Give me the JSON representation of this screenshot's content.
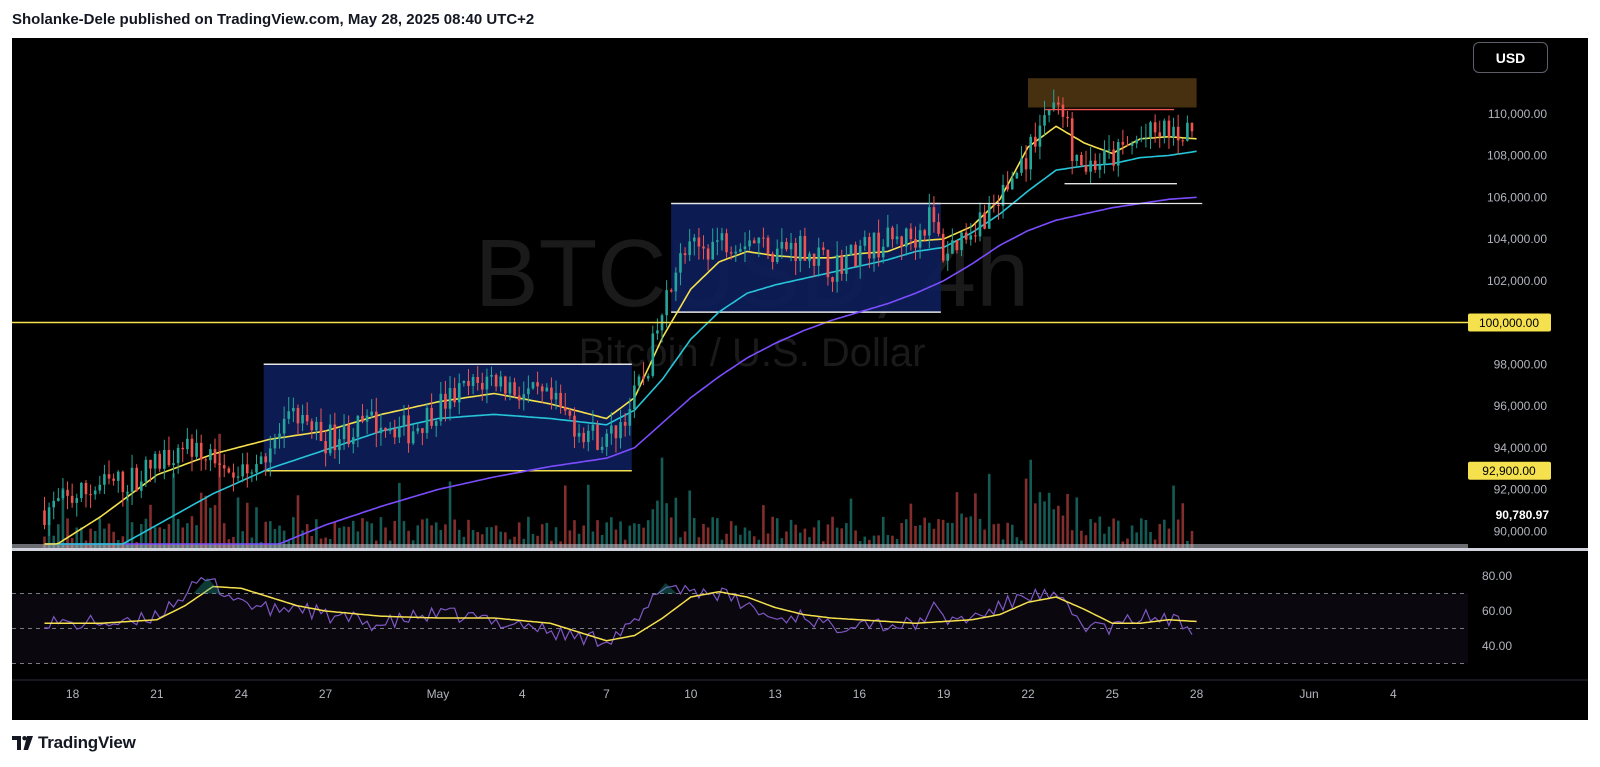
{
  "header": {
    "text": "Sholanke-Dele published on TradingView.com, May 28, 2025 08:40 UTC+2"
  },
  "watermark": {
    "symbol": "BTCUSD, 4h",
    "description": "Bitcoin / U.S. Dollar"
  },
  "currency_button": {
    "label": "USD"
  },
  "footer": {
    "logo_text": "TradingView",
    "logo_icon": "tradingview-logo-icon"
  },
  "colors": {
    "background": "#000000",
    "bull": "#26a69a",
    "bear": "#ef5350",
    "ema_fast": "#f5e14d",
    "ema_mid": "#26c6da",
    "ema_slow": "#7c4dff",
    "level": "#f5e14d",
    "range_box": "#0d1f5c",
    "supply_zone": "#4a3310",
    "rsi": "#7e57c2"
  },
  "chart_data": [
    {
      "type": "candlestick",
      "interval": "4h",
      "y_axis": {
        "range": [
          89300,
          112300
        ],
        "ticks": [
          "110,000.00",
          "108,000.00",
          "106,000.00",
          "104,000.00",
          "102,000.00",
          "98,000.00",
          "96,000.00",
          "94,000.00",
          "92,000.00",
          "90,000.00"
        ]
      },
      "x_axis": {
        "labels": [
          "18",
          "21",
          "24",
          "27",
          "May",
          "4",
          "7",
          "10",
          "13",
          "16",
          "19",
          "22",
          "25",
          "28",
          "Jun",
          "4"
        ],
        "start_day": 17,
        "end_day": 36
      },
      "price_labels": [
        {
          "text": "100,000.00",
          "value": 100000,
          "style": "yellow"
        },
        {
          "text": "92,900.00",
          "value": 92900,
          "style": "yellow"
        },
        {
          "text": "90,780.97",
          "value": 90780.97,
          "style": "plain"
        }
      ],
      "levels": [
        {
          "value": 100000,
          "from_day": 17,
          "to_day": 36,
          "name": "100k-level"
        },
        {
          "value": 92900,
          "from_day": 24.8,
          "to_day": 37.9,
          "name": "range-1-low"
        }
      ],
      "ranges": [
        {
          "from_day": 24.8,
          "to_day": 37.9,
          "low": 92900,
          "high": 98000
        },
        {
          "from_day": 39.3,
          "to_day": 48.9,
          "low": 100500,
          "high": 105700
        }
      ],
      "extra_lines": [
        {
          "value": 106650,
          "from_day": 53.3,
          "to_day": 57.3
        },
        {
          "value": 105700,
          "from_day": 48.9,
          "to_day": 58.2
        },
        {
          "value": 110200,
          "from_day": 52.6,
          "to_day": 57.2,
          "color": "bear"
        }
      ],
      "supply_zone": {
        "from_day": 52,
        "to_day": 58,
        "low": 110300,
        "high": 111700
      },
      "candle_anchors": [
        [
          17,
          91.0
        ],
        [
          18,
          91.6
        ],
        [
          19,
          92.2
        ],
        [
          20,
          92.4
        ],
        [
          21,
          93.2
        ],
        [
          22,
          94.4
        ],
        [
          22.6,
          93.4
        ],
        [
          23.3,
          93.8
        ],
        [
          24,
          92.9
        ],
        [
          24.6,
          93.6
        ],
        [
          25,
          94.0
        ],
        [
          26,
          95.6
        ],
        [
          27,
          94.4
        ],
        [
          28,
          94.9
        ],
        [
          29,
          95.3
        ],
        [
          30,
          94.8
        ],
        [
          31,
          96.0
        ],
        [
          32,
          96.8
        ],
        [
          33,
          97.4
        ],
        [
          34,
          96.6
        ],
        [
          35,
          96.2
        ],
        [
          36,
          95.0
        ],
        [
          37,
          94.3
        ],
        [
          37.5,
          95.2
        ],
        [
          38,
          96.4
        ],
        [
          38.4,
          97.6
        ],
        [
          38.8,
          99.5
        ],
        [
          39.4,
          102.7
        ],
        [
          40,
          103.4
        ],
        [
          41,
          103.9
        ],
        [
          42,
          104.1
        ],
        [
          43,
          103.5
        ],
        [
          44,
          103.7
        ],
        [
          45,
          102.6
        ],
        [
          46,
          103.5
        ],
        [
          47,
          103.9
        ],
        [
          48,
          104.1
        ],
        [
          48.5,
          105.1
        ],
        [
          49,
          103.3
        ],
        [
          50,
          104.6
        ],
        [
          51,
          105.9
        ],
        [
          52,
          108.1
        ],
        [
          52.8,
          110.6
        ],
        [
          53.2,
          110.2
        ],
        [
          53.6,
          108.3
        ],
        [
          54,
          107.5
        ],
        [
          55,
          107.9
        ],
        [
          56,
          108.8
        ],
        [
          57,
          109.2
        ],
        [
          58,
          109.0
        ]
      ],
      "ema_fast": [
        [
          17,
          89.0
        ],
        [
          19,
          90.7
        ],
        [
          21,
          92.7
        ],
        [
          23,
          93.7
        ],
        [
          25,
          94.4
        ],
        [
          27,
          94.8
        ],
        [
          29,
          95.6
        ],
        [
          31,
          96.2
        ],
        [
          33,
          96.6
        ],
        [
          35,
          96.1
        ],
        [
          37,
          95.4
        ],
        [
          38,
          96.4
        ],
        [
          39,
          99.3
        ],
        [
          40,
          101.6
        ],
        [
          41,
          102.9
        ],
        [
          42,
          103.4
        ],
        [
          43,
          103.2
        ],
        [
          44,
          103.1
        ],
        [
          45,
          103.1
        ],
        [
          46,
          103.3
        ],
        [
          47,
          103.4
        ],
        [
          48,
          103.9
        ],
        [
          49,
          104.0
        ],
        [
          50,
          104.6
        ],
        [
          51,
          105.9
        ],
        [
          52,
          108.4
        ],
        [
          53,
          109.4
        ],
        [
          54,
          108.6
        ],
        [
          55,
          108.1
        ],
        [
          56,
          108.8
        ],
        [
          57,
          108.9
        ],
        [
          58,
          108.8
        ]
      ],
      "ema_mid": [
        [
          17,
          87.5
        ],
        [
          19,
          88.8
        ],
        [
          21,
          90.3
        ],
        [
          23,
          91.8
        ],
        [
          25,
          93.0
        ],
        [
          27,
          93.9
        ],
        [
          29,
          94.8
        ],
        [
          31,
          95.4
        ],
        [
          33,
          95.6
        ],
        [
          35,
          95.4
        ],
        [
          37,
          95.1
        ],
        [
          38,
          95.8
        ],
        [
          39,
          97.3
        ],
        [
          40,
          99.2
        ],
        [
          41,
          100.5
        ],
        [
          42,
          101.4
        ],
        [
          43,
          101.8
        ],
        [
          44,
          102.1
        ],
        [
          45,
          102.4
        ],
        [
          46,
          102.7
        ],
        [
          47,
          103.0
        ],
        [
          48,
          103.4
        ],
        [
          49,
          103.6
        ],
        [
          50,
          104.3
        ],
        [
          51,
          105.2
        ],
        [
          52,
          106.3
        ],
        [
          53,
          107.3
        ],
        [
          54,
          107.5
        ],
        [
          55,
          107.6
        ],
        [
          56,
          107.9
        ],
        [
          57,
          108.0
        ],
        [
          58,
          108.2
        ]
      ],
      "ema_slow": [
        [
          17,
          84.5
        ],
        [
          19,
          85.6
        ],
        [
          21,
          86.8
        ],
        [
          23,
          88.0
        ],
        [
          25,
          89.2
        ],
        [
          27,
          90.3
        ],
        [
          29,
          91.2
        ],
        [
          31,
          92.0
        ],
        [
          33,
          92.6
        ],
        [
          35,
          93.1
        ],
        [
          37,
          93.5
        ],
        [
          38,
          94.0
        ],
        [
          39,
          95.2
        ],
        [
          40,
          96.4
        ],
        [
          41,
          97.4
        ],
        [
          42,
          98.3
        ],
        [
          43,
          99.0
        ],
        [
          44,
          99.6
        ],
        [
          45,
          100.1
        ],
        [
          46,
          100.5
        ],
        [
          47,
          100.9
        ],
        [
          48,
          101.4
        ],
        [
          49,
          102.0
        ],
        [
          50,
          102.8
        ],
        [
          51,
          103.7
        ],
        [
          52,
          104.4
        ],
        [
          53,
          104.9
        ],
        [
          54,
          105.2
        ],
        [
          55,
          105.5
        ],
        [
          56,
          105.7
        ],
        [
          57,
          105.9
        ],
        [
          58,
          106.0
        ]
      ]
    },
    {
      "type": "line",
      "name": "RSI",
      "y_axis": {
        "ticks": [
          "80.00",
          "60.00",
          "40.00"
        ],
        "bands": [
          70,
          50,
          30
        ],
        "range": [
          30,
          85
        ]
      },
      "rsi_anchors": [
        [
          17,
          55
        ],
        [
          18,
          52
        ],
        [
          19,
          54
        ],
        [
          20,
          52
        ],
        [
          21,
          58
        ],
        [
          22,
          70
        ],
        [
          22.8,
          78
        ],
        [
          23.5,
          70
        ],
        [
          24,
          66
        ],
        [
          25,
          60
        ],
        [
          26,
          63
        ],
        [
          27,
          57
        ],
        [
          28,
          55
        ],
        [
          29,
          52
        ],
        [
          30,
          56
        ],
        [
          31,
          58
        ],
        [
          32,
          57
        ],
        [
          33,
          54
        ],
        [
          34,
          53
        ],
        [
          35,
          48
        ],
        [
          36,
          45
        ],
        [
          37,
          44
        ],
        [
          38,
          52
        ],
        [
          38.5,
          62
        ],
        [
          39,
          75
        ],
        [
          40,
          72
        ],
        [
          41,
          70
        ],
        [
          42,
          63
        ],
        [
          43,
          55
        ],
        [
          44,
          58
        ],
        [
          45,
          50
        ],
        [
          46,
          55
        ],
        [
          47,
          52
        ],
        [
          48,
          52
        ],
        [
          48.6,
          62
        ],
        [
          49,
          55
        ],
        [
          50,
          56
        ],
        [
          51,
          62
        ],
        [
          52,
          70
        ],
        [
          53,
          67
        ],
        [
          54,
          52
        ],
        [
          55,
          50
        ],
        [
          56,
          57
        ],
        [
          57,
          55
        ],
        [
          58,
          50
        ]
      ],
      "signal_anchors": [
        [
          17,
          53
        ],
        [
          19,
          53
        ],
        [
          21,
          55
        ],
        [
          22,
          63
        ],
        [
          23,
          74
        ],
        [
          24,
          73
        ],
        [
          25,
          68
        ],
        [
          26,
          63
        ],
        [
          27,
          60
        ],
        [
          29,
          57
        ],
        [
          31,
          56
        ],
        [
          33,
          56
        ],
        [
          35,
          53
        ],
        [
          36,
          48
        ],
        [
          37,
          43
        ],
        [
          38,
          46
        ],
        [
          39,
          56
        ],
        [
          40,
          68
        ],
        [
          41,
          71
        ],
        [
          42,
          68
        ],
        [
          43,
          62
        ],
        [
          44,
          58
        ],
        [
          45,
          56
        ],
        [
          47,
          54
        ],
        [
          48,
          53
        ],
        [
          49,
          54
        ],
        [
          50,
          55
        ],
        [
          51,
          58
        ],
        [
          52,
          65
        ],
        [
          53,
          68
        ],
        [
          54,
          61
        ],
        [
          55,
          53
        ],
        [
          56,
          53
        ],
        [
          57,
          55
        ],
        [
          58,
          54
        ]
      ]
    }
  ]
}
